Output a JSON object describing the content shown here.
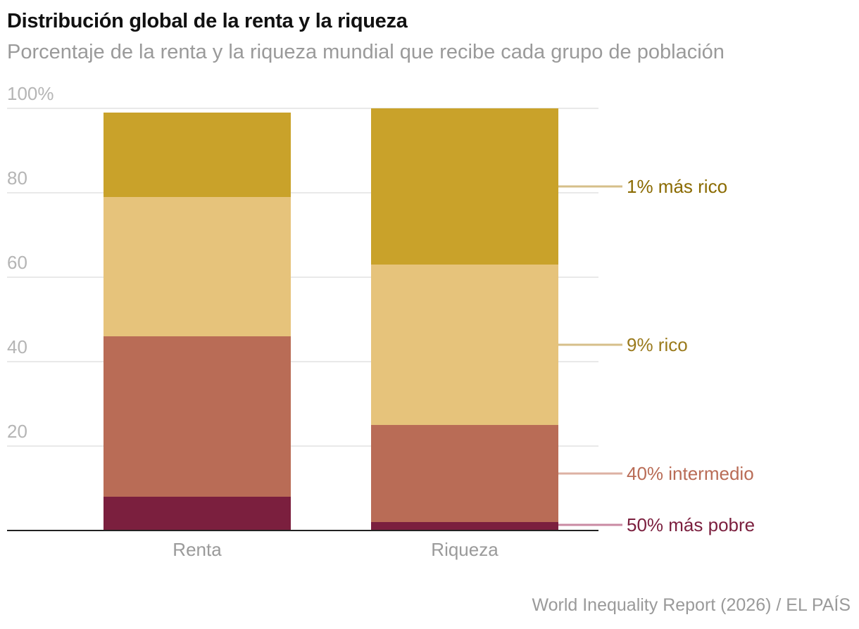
{
  "title": "Distribución global de la renta y la riqueza",
  "subtitle": "Porcentaje de la renta y la riqueza mundial que recibe cada grupo de población",
  "source": "World Inequality Report (2026) / EL PAÍS",
  "chart_data": {
    "type": "bar",
    "stacked": true,
    "categories": [
      "Renta",
      "Riqueza"
    ],
    "ylim": [
      0,
      100
    ],
    "yticks": [
      0,
      20,
      40,
      60,
      80,
      100
    ],
    "ytick_labels": [
      "",
      "20",
      "40",
      "60",
      "80",
      "100%"
    ],
    "grid": true,
    "legend_placement": "right",
    "series": [
      {
        "name": "50% más pobre",
        "values": [
          8,
          2
        ],
        "color": "#7b1f3e",
        "label_color": "#7b1f3e",
        "leader_color": "#c98aa3"
      },
      {
        "name": "40% intermedio",
        "values": [
          38,
          23
        ],
        "color": "#b96c56",
        "label_color": "#b96c56",
        "leader_color": "#ddb1a3"
      },
      {
        "name": "9% rico",
        "values": [
          33,
          38
        ],
        "color": "#e6c37b",
        "label_color": "#9a7a1c",
        "leader_color": "#d6bf8a"
      },
      {
        "name": "1% más rico",
        "values": [
          20,
          37
        ],
        "color": "#c9a22a",
        "label_color": "#8a6a00",
        "leader_color": "#d6bf8a"
      }
    ]
  }
}
